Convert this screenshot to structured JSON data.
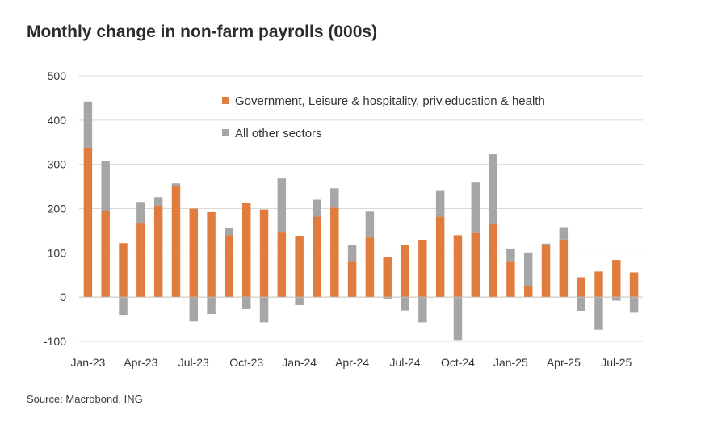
{
  "chart_data": {
    "type": "bar",
    "stacked": true,
    "title": "Monthly change in non-farm payrolls (000s)",
    "source": "Source: Macrobond, ING",
    "ylim": [
      -100,
      500
    ],
    "yticks": [
      -100,
      0,
      100,
      200,
      300,
      400,
      500
    ],
    "xtick_labels": [
      "Jan-23",
      "Apr-23",
      "Jul-23",
      "Oct-23",
      "Jan-24",
      "Apr-24",
      "Jul-24",
      "Oct-24",
      "Jan-25",
      "Apr-25",
      "Jul-25"
    ],
    "xtick_every": 3,
    "legend_position": "top-right",
    "categories": [
      "Jan-23",
      "Feb-23",
      "Mar-23",
      "Apr-23",
      "May-23",
      "Jun-23",
      "Jul-23",
      "Aug-23",
      "Sep-23",
      "Oct-23",
      "Nov-23",
      "Dec-23",
      "Jan-24",
      "Feb-24",
      "Mar-24",
      "Apr-24",
      "May-24",
      "Jun-24",
      "Jul-24",
      "Aug-24",
      "Sep-24",
      "Oct-24",
      "Nov-24",
      "Dec-24",
      "Jan-25",
      "Feb-25",
      "Mar-25",
      "Apr-25",
      "May-25",
      "Jun-25",
      "Jul-25",
      "Aug-25"
    ],
    "series": [
      {
        "name": "Government, Leisure & hospitality, priv.education & health",
        "color": "#e07c3e",
        "values": [
          337,
          195,
          122,
          168,
          207,
          252,
          200,
          192,
          140,
          212,
          198,
          146,
          137,
          182,
          202,
          80,
          135,
          90,
          118,
          128,
          182,
          140,
          145,
          165,
          80,
          25,
          117,
          130,
          45,
          58,
          84,
          56
        ]
      },
      {
        "name": "All other sectors",
        "color": "#a6a6a6",
        "values": [
          105,
          112,
          -40,
          47,
          19,
          5,
          -55,
          -38,
          16,
          -27,
          -57,
          122,
          -18,
          38,
          44,
          38,
          58,
          -5,
          -30,
          -57,
          58,
          -97,
          114,
          158,
          30,
          76,
          4,
          28,
          -31,
          -74,
          -8,
          -35
        ]
      }
    ]
  }
}
